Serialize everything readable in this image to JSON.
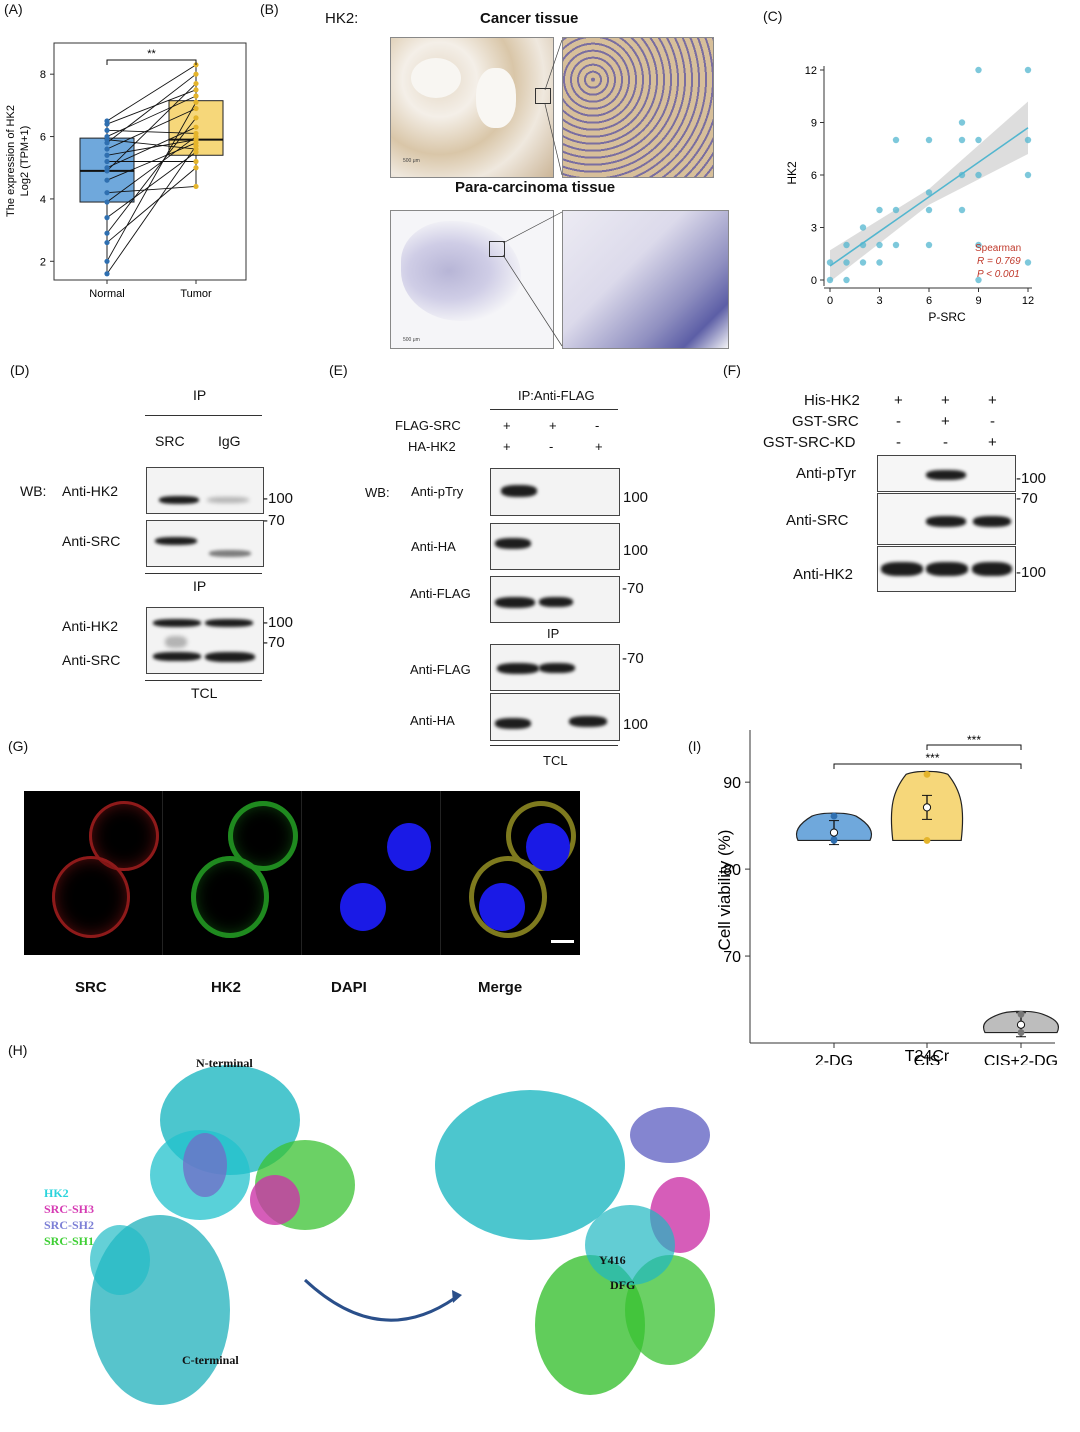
{
  "panels": {
    "A": "(A)",
    "B": "(B)",
    "C": "(C)",
    "D": "(D)",
    "E": "(E)",
    "F": "(F)",
    "G": "(G)",
    "H": "(H)",
    "I": "(I)"
  },
  "panelA": {
    "ylabel_line1": "The expression of HK2",
    "ylabel_line2": "Log2 (TPM+1)",
    "sig": "**",
    "colors": {
      "normal": "#6fa8dc",
      "tumor": "#f6d77a"
    },
    "chart_data": {
      "type": "box",
      "categories": [
        "Normal",
        "Tumor"
      ],
      "ylim": [
        1.4,
        9
      ],
      "yticks": [
        2,
        4,
        6,
        8
      ],
      "boxes": [
        {
          "name": "Normal",
          "q1": 3.9,
          "median": 4.9,
          "q3": 5.95,
          "min": 1.6,
          "max": 6.5
        },
        {
          "name": "Tumor",
          "q1": 5.4,
          "median": 5.9,
          "q3": 7.15,
          "min": 4.4,
          "max": 8.3
        }
      ],
      "pairs": [
        [
          6.5,
          8.3
        ],
        [
          6.4,
          7.5
        ],
        [
          6.2,
          6.1
        ],
        [
          6.0,
          7.3
        ],
        [
          5.9,
          5.6
        ],
        [
          5.8,
          8.0
        ],
        [
          5.6,
          6.9
        ],
        [
          5.4,
          5.9
        ],
        [
          5.2,
          5.2
        ],
        [
          5.0,
          6.3
        ],
        [
          4.9,
          7.7
        ],
        [
          4.6,
          5.8
        ],
        [
          4.2,
          4.4
        ],
        [
          3.9,
          6.0
        ],
        [
          3.4,
          5.5
        ],
        [
          2.9,
          6.6
        ],
        [
          2.6,
          5.0
        ],
        [
          2.0,
          7.1
        ],
        [
          1.6,
          5.7
        ]
      ]
    }
  },
  "panelB": {
    "prefix": "HK2:",
    "title_top": "Cancer tissue",
    "title_bottom": "Para-carcinoma tissue",
    "scale_text": "500 μm"
  },
  "panelC": {
    "stat_name": "Spearman",
    "r_text": "R = 0.769",
    "p_text": "P < 0.001",
    "color": "#52b6cf",
    "chart_data": {
      "type": "scatter",
      "xlabel": "P-SRC",
      "ylabel": "HK2",
      "xlim": [
        0,
        12
      ],
      "ylim": [
        0,
        12
      ],
      "xticks": [
        0,
        3,
        6,
        9,
        12
      ],
      "yticks": [
        0,
        3,
        6,
        9,
        12
      ],
      "points": [
        [
          0,
          0
        ],
        [
          0,
          1
        ],
        [
          1,
          0
        ],
        [
          1,
          1
        ],
        [
          1,
          2
        ],
        [
          2,
          1
        ],
        [
          2,
          2
        ],
        [
          2,
          3
        ],
        [
          3,
          1
        ],
        [
          3,
          2
        ],
        [
          3,
          4
        ],
        [
          4,
          2
        ],
        [
          4,
          4
        ],
        [
          4,
          8
        ],
        [
          6,
          2
        ],
        [
          6,
          4
        ],
        [
          6,
          5
        ],
        [
          6,
          8
        ],
        [
          8,
          4
        ],
        [
          8,
          6
        ],
        [
          8,
          8
        ],
        [
          8,
          9
        ],
        [
          9,
          0
        ],
        [
          9,
          2
        ],
        [
          9,
          6
        ],
        [
          9,
          8
        ],
        [
          9,
          12
        ],
        [
          12,
          1
        ],
        [
          12,
          6
        ],
        [
          12,
          8
        ],
        [
          12,
          12
        ]
      ],
      "fit": {
        "x": [
          0,
          12
        ],
        "y": [
          0.8,
          8.7
        ]
      }
    }
  },
  "panelD": {
    "ip": "IP",
    "col_src": "SRC",
    "col_igg": "IgG",
    "wb": "WB:",
    "row1": "Anti-HK2",
    "row2": "Anti-SRC",
    "ip2": "IP",
    "row3": "Anti-HK2",
    "row4": "Anti-SRC",
    "tcl": "TCL",
    "mw100a": "-100",
    "mw70a": "-70",
    "mw100b": "-100",
    "mw70b": "-70"
  },
  "panelE": {
    "ip": "IP:Anti-FLAG",
    "flag_src": "FLAG-SRC",
    "ha_hk2": "HA-HK2",
    "flag_signs": [
      "+",
      "+",
      "-"
    ],
    "ha_signs": [
      "+",
      "-",
      "+"
    ],
    "wb": "WB:",
    "row1": "Anti-pTry",
    "row2": "Anti-HA",
    "row3": "Anti-FLAG",
    "ip2": "IP",
    "row4": "Anti-FLAG",
    "row5": "Anti-HA",
    "tcl": "TCL",
    "mw1": "100",
    "mw2": "100",
    "mw3": "-70",
    "mw4": "-70",
    "mw5": "100"
  },
  "panelF": {
    "his": "His-HK2",
    "gst": "GST-SRC",
    "gstkd": "GST-SRC-KD",
    "his_signs": [
      "+",
      "+",
      "+"
    ],
    "gst_signs": [
      "-",
      "+",
      "-"
    ],
    "kd_signs": [
      "-",
      "-",
      "+"
    ],
    "row1": "Anti-pTyr",
    "row2": "Anti-SRC",
    "row3": "Anti-HK2",
    "mw1": "-100",
    "mw2": "-70",
    "mw3": "-100"
  },
  "panelG": {
    "labels": [
      "SRC",
      "HK2",
      "DAPI",
      "Merge"
    ]
  },
  "panelH": {
    "n_term": "N-terminal",
    "c_term": "C-terminal",
    "legend": [
      {
        "label": "HK2",
        "color": "#2ad4dc"
      },
      {
        "label": "SRC-SH3",
        "color": "#d63cb4"
      },
      {
        "label": "SRC-SH2",
        "color": "#7d80d6"
      },
      {
        "label": "SRC-SH1",
        "color": "#3fcf35"
      }
    ],
    "y416": "Y416",
    "dfg": "DFG"
  },
  "panelI": {
    "sig1": "***",
    "sig2": "***",
    "xgroup": "T24Cr",
    "colors": {
      "a": "#6fa8dc",
      "b": "#f6d77a",
      "c": "#bdbdbd"
    },
    "chart_data": {
      "type": "violin",
      "ylabel": "Cell viability (%)",
      "categories": [
        "2-DG",
        "CIS",
        "CIS+2-DG"
      ],
      "ylim": [
        60,
        96
      ],
      "yticks": [
        70,
        80,
        90
      ],
      "means": [
        84.2,
        87.1,
        62.1
      ],
      "points": [
        [
          86.1,
          83.3,
          83.4
        ],
        [
          90.9,
          87.1,
          83.3
        ],
        [
          63.3,
          62.1,
          61.2
        ]
      ]
    }
  }
}
